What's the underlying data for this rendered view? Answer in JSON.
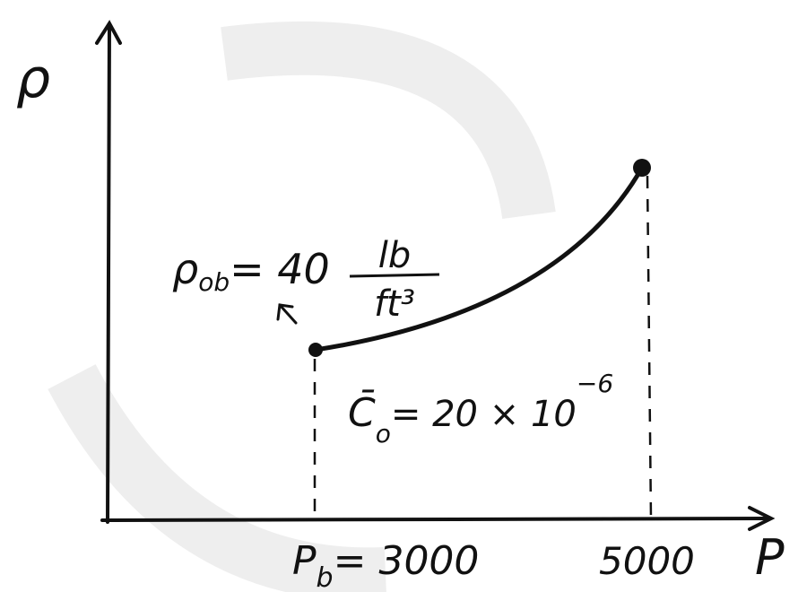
{
  "axes": {
    "y_label": "ρ",
    "x_label": "P"
  },
  "density_note": {
    "symbol": "ρ",
    "subscript": "ob",
    "value": "= 40",
    "unit_numerator": "lb",
    "unit_denominator": "ft³"
  },
  "compressibility_note": {
    "symbol": "C̄",
    "subscript": "o",
    "value": "= 20 × 10",
    "exponent": "−6"
  },
  "x_marks": {
    "bubble_point": {
      "symbol": "P",
      "subscript": "b",
      "value": "= 3000"
    },
    "end_point": "5000"
  }
}
